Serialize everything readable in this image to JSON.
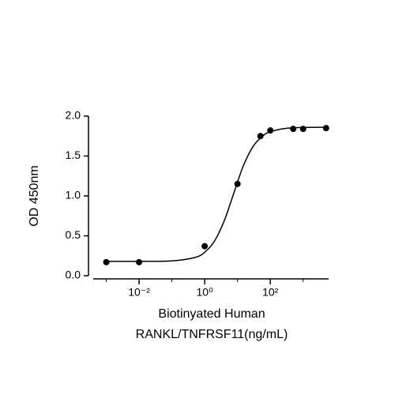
{
  "chart_data": {
    "type": "scatter",
    "xlabel": [
      "Biotinyated Human",
      "RANKL/TNFRSF11(ng/mL)"
    ],
    "ylabel": "OD 450nm",
    "x": [
      0.001,
      0.01,
      1,
      10,
      50,
      100,
      500,
      1000,
      5000
    ],
    "values": [
      0.17,
      0.17,
      0.37,
      1.15,
      1.75,
      1.82,
      1.84,
      1.84,
      1.85
    ],
    "color": "#000000",
    "fit": {
      "x": [
        0.001,
        0.01,
        0.1,
        0.5,
        1,
        2,
        4,
        8,
        15,
        30,
        60,
        100,
        300,
        1000,
        5000
      ],
      "values": [
        0.18,
        0.18,
        0.186,
        0.228,
        0.294,
        0.436,
        0.695,
        1.055,
        1.375,
        1.622,
        1.755,
        1.804,
        1.846,
        1.858,
        1.86
      ]
    },
    "xscale": "log",
    "xlim": [
      0.0004,
      6000
    ],
    "xticks": [
      {
        "value": 0.01,
        "label": "10⁻²"
      },
      {
        "value": 1,
        "label": "10⁰"
      },
      {
        "value": 100,
        "label": "10²"
      }
    ],
    "minor_xticks": [
      0.001,
      0.1,
      10,
      1000
    ],
    "ylim": [
      0,
      2
    ],
    "yticks": [
      {
        "value": 0,
        "label": "0.0"
      },
      0.5,
      {
        "value": 1,
        "label": "1.0"
      },
      1.5,
      {
        "value": 2,
        "label": "2.0"
      }
    ]
  }
}
